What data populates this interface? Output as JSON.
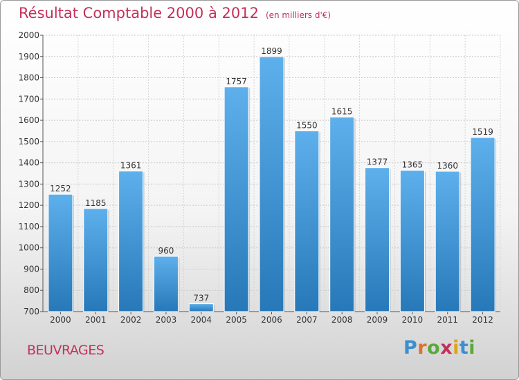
{
  "header": {
    "title": "Résultat Comptable 2000 à 2012",
    "unit_note": "(en milliers d'€)"
  },
  "footer": {
    "town": "BEUVRAGES",
    "brand_letters": [
      "P",
      "r",
      "o",
      "x",
      "i",
      "t",
      "i"
    ],
    "brand_colors": [
      "#3a8fd0",
      "#e0712a",
      "#5aaa3a",
      "#c4305a",
      "#e0a21a",
      "#3a8fd0",
      "#5aaa3a"
    ]
  },
  "chart_data": {
    "type": "bar",
    "title": "Résultat Comptable 2000 à 2012",
    "subtitle": "(en milliers d'€)",
    "categories": [
      "2000",
      "2001",
      "2002",
      "2003",
      "2004",
      "2005",
      "2006",
      "2007",
      "2008",
      "2009",
      "2010",
      "2011",
      "2012"
    ],
    "values": [
      1252,
      1185,
      1361,
      960,
      737,
      1757,
      1899,
      1550,
      1615,
      1377,
      1365,
      1360,
      1519
    ],
    "xlabel": "",
    "ylabel": "",
    "ylim": [
      700,
      2000
    ],
    "yticks": [
      700,
      800,
      900,
      1000,
      1100,
      1200,
      1300,
      1400,
      1500,
      1600,
      1700,
      1800,
      1900,
      2000
    ],
    "grid": true,
    "legend": "none",
    "bar_color_top": "#5eb0ec",
    "bar_color_bottom": "#2778b8"
  }
}
